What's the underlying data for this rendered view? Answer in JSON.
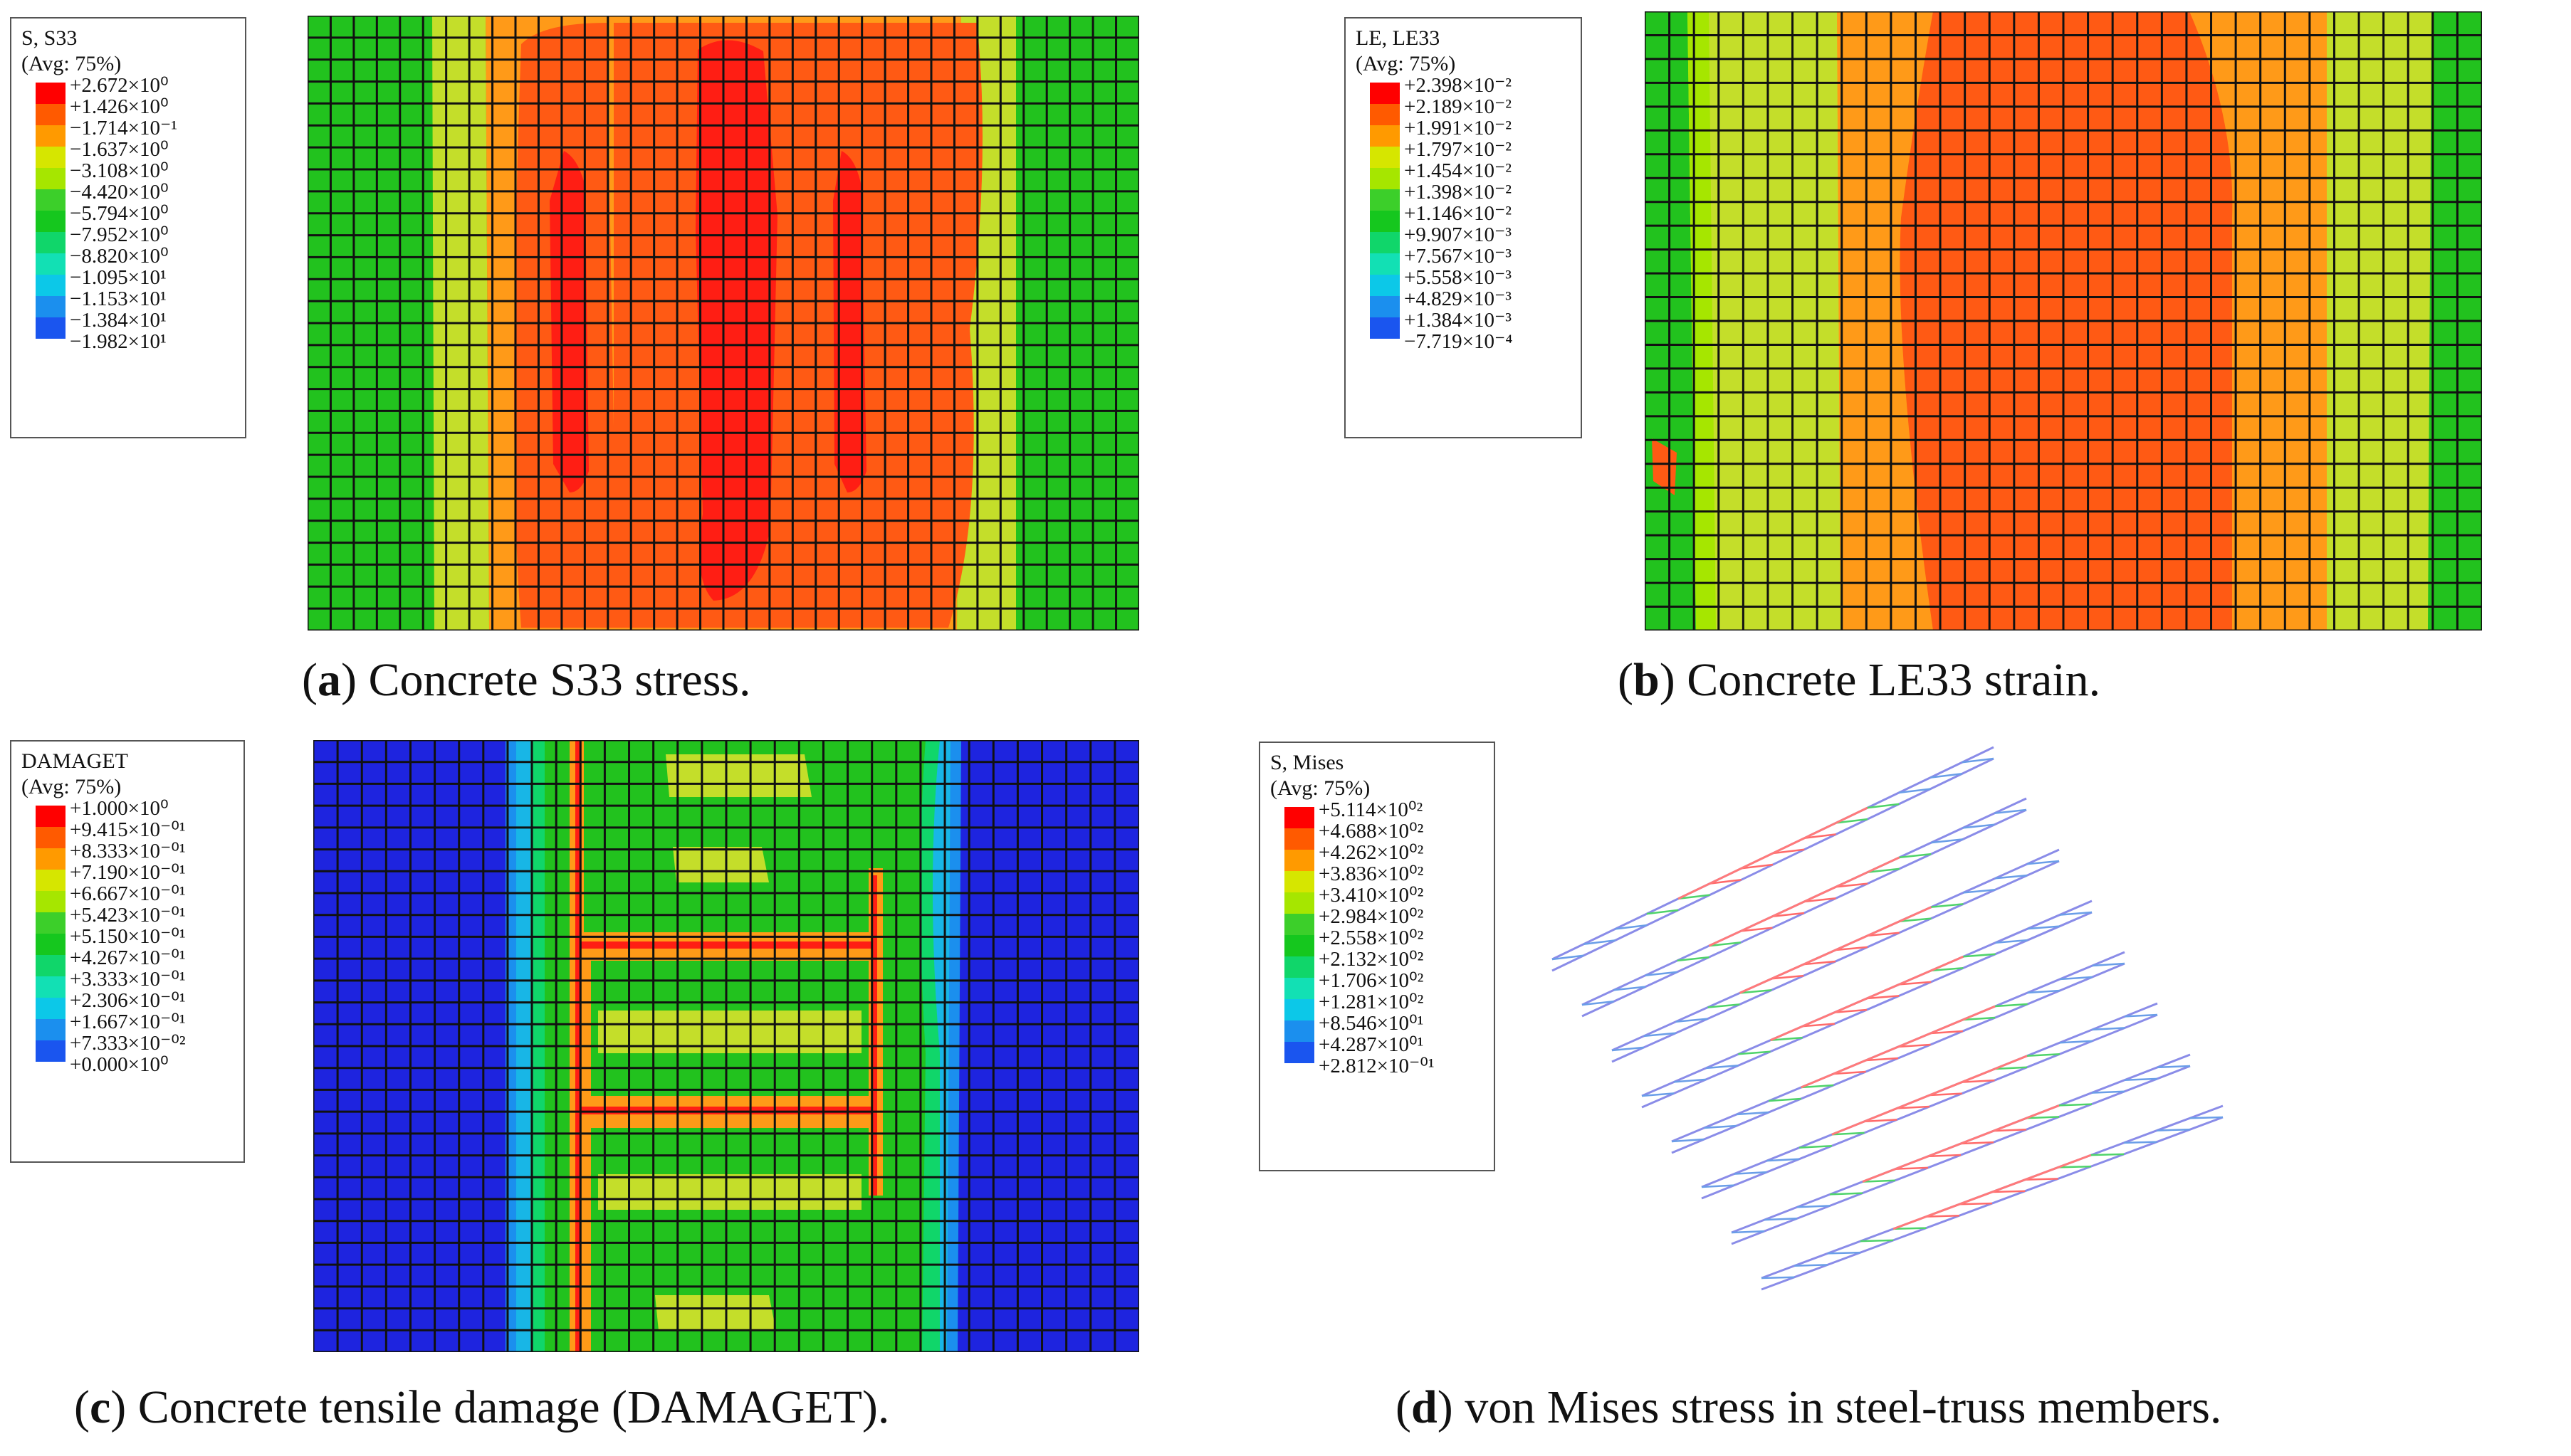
{
  "panels": {
    "a": {
      "legend_title": "S, S33",
      "legend_avg": "(Avg: 75%)",
      "labels": [
        "+2.672×10⁰",
        "+1.426×10⁰",
        "−1.714×10⁻¹",
        "−1.637×10⁰",
        "−3.108×10⁰",
        "−4.420×10⁰",
        "−5.794×10⁰",
        "−7.952×10⁰",
        "−8.820×10⁰",
        "−1.095×10¹",
        "−1.153×10¹",
        "−1.384×10¹",
        "−1.982×10¹"
      ],
      "caption_letter": "a",
      "caption_text": " Concrete S33 stress."
    },
    "b": {
      "legend_title": "LE, LE33",
      "legend_avg": "(Avg: 75%)",
      "labels": [
        "+2.398×10⁻²",
        "+2.189×10⁻²",
        "+1.991×10⁻²",
        "+1.797×10⁻²",
        "+1.454×10⁻²",
        "+1.398×10⁻²",
        "+1.146×10⁻²",
        "+9.907×10⁻³",
        "+7.567×10⁻³",
        "+5.558×10⁻³",
        "+4.829×10⁻³",
        "+1.384×10⁻³",
        "−7.719×10⁻⁴"
      ],
      "caption_letter": "b",
      "caption_text": " Concrete LE33 strain."
    },
    "c": {
      "legend_title": "DAMAGET",
      "legend_avg": "(Avg: 75%)",
      "labels": [
        "+1.000×10⁰",
        "+9.415×10⁻⁰¹",
        "+8.333×10⁻⁰¹",
        "+7.190×10⁻⁰¹",
        "+6.667×10⁻⁰¹",
        "+5.423×10⁻⁰¹",
        "+5.150×10⁻⁰¹",
        "+4.267×10⁻⁰¹",
        "+3.333×10⁻⁰¹",
        "+2.306×10⁻⁰¹",
        "+1.667×10⁻⁰¹",
        "+7.333×10⁻⁰²",
        "+0.000×10⁰"
      ],
      "caption_letter": "c",
      "caption_text": " Concrete tensile damage (DAMAGET)."
    },
    "d": {
      "legend_title": "S, Mises",
      "legend_avg": "(Avg: 75%)",
      "labels": [
        "+5.114×10⁰²",
        "+4.688×10⁰²",
        "+4.262×10⁰²",
        "+3.836×10⁰²",
        "+3.410×10⁰²",
        "+2.984×10⁰²",
        "+2.558×10⁰²",
        "+2.132×10⁰²",
        "+1.706×10⁰²",
        "+1.281×10⁰²",
        "+8.546×10⁰¹",
        "+4.287×10⁰¹",
        "+2.812×10⁻⁰¹"
      ],
      "caption_letter": "d",
      "caption_text": " von Mises stress in steel-truss members."
    }
  },
  "colors": {
    "scale": [
      "#ff0000",
      "#ff5a00",
      "#ff9a00",
      "#d6e600",
      "#a6e600",
      "#3ccf2a",
      "#15c71e",
      "#10d66a",
      "#12e0b4",
      "#0cc8e8",
      "#1b8fee",
      "#1a55ef",
      "#1d1ce6"
    ],
    "red": "#ff1e14",
    "orange_red": "#ff5a14",
    "orange": "#ff9a18",
    "yellow": "#cfe020",
    "green": "#22c21e",
    "blue": "#1e24df",
    "cyan": "#18b6e6"
  }
}
